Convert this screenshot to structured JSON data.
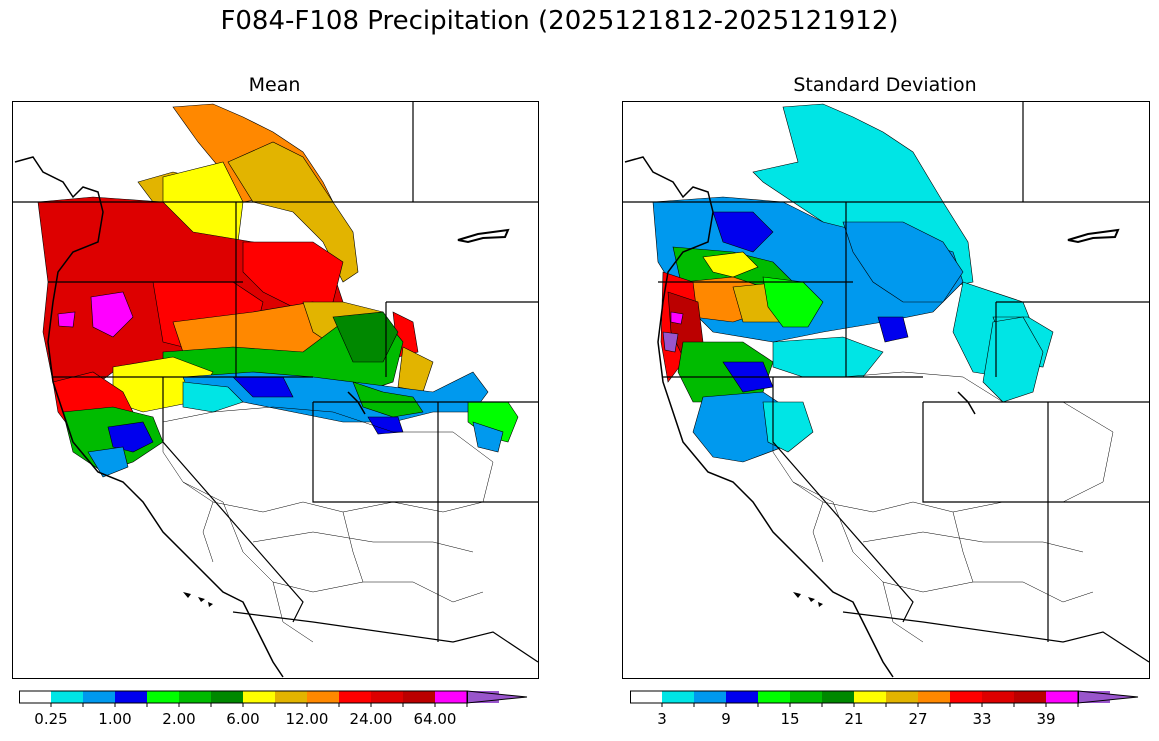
{
  "title": "F084-F108 Precipitation (2025121812-2025121912)",
  "panels": {
    "mean": {
      "title": "Mean",
      "colors": [
        "#ffffff",
        "#00e5e5",
        "#0099ee",
        "#0000ee",
        "#00ff00",
        "#00bb00",
        "#008800",
        "#ffff00",
        "#e2b400",
        "#ff8800",
        "#ff0000",
        "#dd0000",
        "#bb0000",
        "#ff00ff",
        "#9955cc"
      ],
      "tick_labels": [
        "0.25",
        "1.00",
        "2.00",
        "6.00",
        "12.00",
        "24.00",
        "64.00"
      ],
      "tick_positions": [
        1,
        3,
        5,
        7,
        9,
        11,
        13
      ]
    },
    "std": {
      "title": "Standard Deviation",
      "colors": [
        "#ffffff",
        "#00e5e5",
        "#0099ee",
        "#0000ee",
        "#00ff00",
        "#00bb00",
        "#008800",
        "#ffff00",
        "#e2b400",
        "#ff8800",
        "#ff0000",
        "#dd0000",
        "#bb0000",
        "#ff00ff",
        "#9955cc"
      ],
      "tick_labels": [
        "3",
        "9",
        "15",
        "21",
        "27",
        "33",
        "39"
      ],
      "tick_positions": [
        1,
        3,
        5,
        7,
        9,
        11,
        13
      ]
    }
  }
}
